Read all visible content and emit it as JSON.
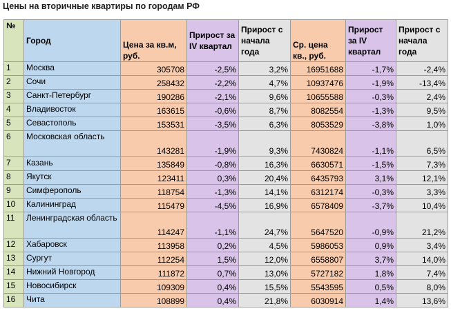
{
  "title": "Цены на вторичные квартиры по городам РФ",
  "headers": {
    "num": "№",
    "city": "Город",
    "price_sqm": "Цена за кв.м, руб.",
    "growth_q4_sqm": "Прирост за IV квартал",
    "growth_ytd_sqm": "Прирост с начала года",
    "avg_price": "Ср. цена кв., руб.",
    "growth_q4_avg": "Прирост за IV квартал",
    "growth_ytd_avg": "Прирост с начала года"
  },
  "colors": {
    "num": "#d8e4bc",
    "city": "#bdd7ee",
    "price": "#f8cbad",
    "growth": "#d9c3e9",
    "growth_ytd": "#e3e3e3"
  },
  "rows": [
    {
      "num": "1",
      "city": "Москва",
      "price_sqm": "305708",
      "g_q4_sqm": "-2,5%",
      "g_ytd_sqm": "3,2%",
      "avg_price": "16951688",
      "g_q4_avg": "-1,7%",
      "g_ytd_avg": "-2,4%"
    },
    {
      "num": "2",
      "city": "Сочи",
      "price_sqm": "258432",
      "g_q4_sqm": "-2,2%",
      "g_ytd_sqm": "4,7%",
      "avg_price": "10937476",
      "g_q4_avg": "-1,9%",
      "g_ytd_avg": "-13,4%"
    },
    {
      "num": "3",
      "city": "Санкт-Петербург",
      "price_sqm": "190286",
      "g_q4_sqm": "-2,1%",
      "g_ytd_sqm": "9,6%",
      "avg_price": "10655588",
      "g_q4_avg": "-0,3%",
      "g_ytd_avg": "2,4%"
    },
    {
      "num": "4",
      "city": "Владивосток",
      "price_sqm": "163615",
      "g_q4_sqm": "-0,6%",
      "g_ytd_sqm": "8,7%",
      "avg_price": "8082554",
      "g_q4_avg": "-1,3%",
      "g_ytd_avg": "9,5%"
    },
    {
      "num": "5",
      "city": "Севастополь",
      "price_sqm": "153531",
      "g_q4_sqm": "-3,5%",
      "g_ytd_sqm": "6,3%",
      "avg_price": "8053529",
      "g_q4_avg": "-3,8%",
      "g_ytd_avg": "1,0%"
    },
    {
      "num": "6",
      "city": "Московская область",
      "price_sqm": "143281",
      "g_q4_sqm": "-1,9%",
      "g_ytd_sqm": "9,3%",
      "avg_price": "7430824",
      "g_q4_avg": "-1,1%",
      "g_ytd_avg": "6,5%"
    },
    {
      "num": "7",
      "city": "Казань",
      "price_sqm": "135849",
      "g_q4_sqm": "-0,8%",
      "g_ytd_sqm": "16,3%",
      "avg_price": "6630571",
      "g_q4_avg": "-1,5%",
      "g_ytd_avg": "7,3%"
    },
    {
      "num": "8",
      "city": "Якутск",
      "price_sqm": "123411",
      "g_q4_sqm": "0,3%",
      "g_ytd_sqm": "20,4%",
      "avg_price": "6435793",
      "g_q4_avg": "3,1%",
      "g_ytd_avg": "12,1%"
    },
    {
      "num": "9",
      "city": "Симферополь",
      "price_sqm": "118754",
      "g_q4_sqm": "-1,3%",
      "g_ytd_sqm": "14,1%",
      "avg_price": "6312174",
      "g_q4_avg": "-0,3%",
      "g_ytd_avg": "3,3%"
    },
    {
      "num": "10",
      "city": "Калининград",
      "price_sqm": "115479",
      "g_q4_sqm": "-4,5%",
      "g_ytd_sqm": "16,9%",
      "avg_price": "6578409",
      "g_q4_avg": "-3,7%",
      "g_ytd_avg": "10,4%"
    },
    {
      "num": "11",
      "city": "Ленинградская область",
      "price_sqm": "114247",
      "g_q4_sqm": "-1,1%",
      "g_ytd_sqm": "24,7%",
      "avg_price": "5647520",
      "g_q4_avg": "-0,9%",
      "g_ytd_avg": "21,2%"
    },
    {
      "num": "12",
      "city": "Хабаровск",
      "price_sqm": "113958",
      "g_q4_sqm": "0,2%",
      "g_ytd_sqm": "4,5%",
      "avg_price": "5986053",
      "g_q4_avg": "0,9%",
      "g_ytd_avg": "3,4%"
    },
    {
      "num": "13",
      "city": "Сургут",
      "price_sqm": "112254",
      "g_q4_sqm": "1,5%",
      "g_ytd_sqm": "12,0%",
      "avg_price": "6558807",
      "g_q4_avg": "3,7%",
      "g_ytd_avg": "14,0%"
    },
    {
      "num": "14",
      "city": "Нижний Новгород",
      "price_sqm": "111872",
      "g_q4_sqm": "0,7%",
      "g_ytd_sqm": "13,0%",
      "avg_price": "5727182",
      "g_q4_avg": "1,8%",
      "g_ytd_avg": "7,4%"
    },
    {
      "num": "15",
      "city": "Новосибирск",
      "price_sqm": "109309",
      "g_q4_sqm": "0,4%",
      "g_ytd_sqm": "15,5%",
      "avg_price": "5543595",
      "g_q4_avg": "0,5%",
      "g_ytd_avg": "8,0%"
    },
    {
      "num": "16",
      "city": "Чита",
      "price_sqm": "108899",
      "g_q4_sqm": "0,4%",
      "g_ytd_sqm": "21,8%",
      "avg_price": "6030914",
      "g_q4_avg": "1,4%",
      "g_ytd_avg": "13,6%"
    }
  ]
}
